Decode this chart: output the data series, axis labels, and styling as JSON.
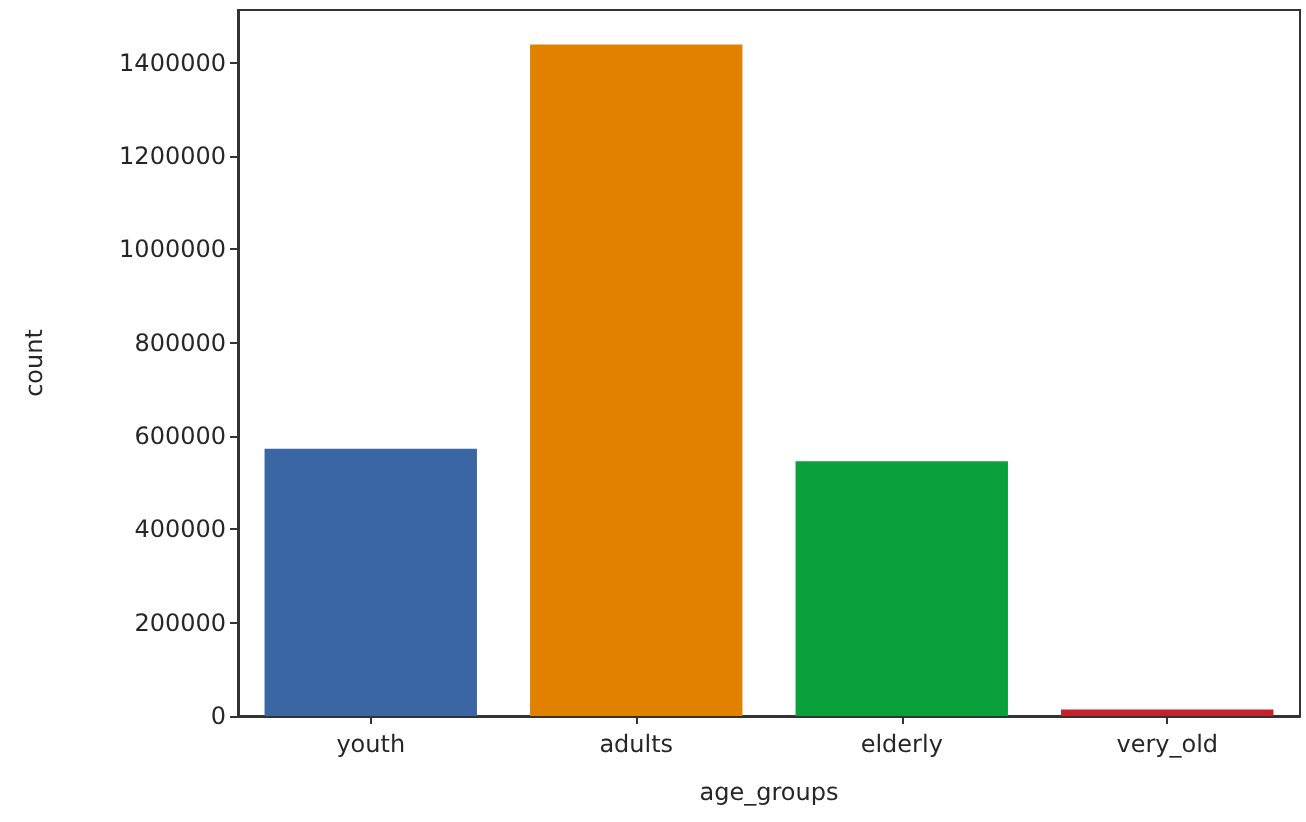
{
  "chart_data": {
    "type": "bar",
    "xlabel": "age_groups",
    "ylabel": "count",
    "categories": [
      "youth",
      "adults",
      "elderly",
      "very_old"
    ],
    "values": [
      573000,
      1439000,
      546000,
      14000
    ],
    "colors": [
      "#3a67a4",
      "#e28100",
      "#0aa03c",
      "#c8202a"
    ],
    "ylim": [
      0,
      1513000
    ],
    "yticks": [
      0,
      200000,
      400000,
      600000,
      800000,
      1000000,
      1200000,
      1400000
    ],
    "grid": false
  }
}
